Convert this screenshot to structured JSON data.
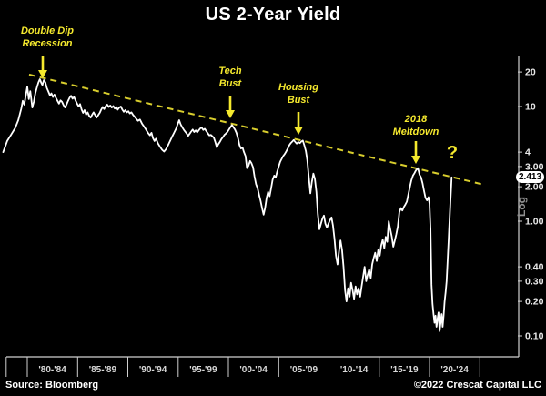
{
  "title": "US 2-Year Yield",
  "footer": {
    "source": "Source: Bloomberg",
    "copyright": "©2022 Crescat Capital LLC"
  },
  "axis": {
    "scale_label": "Log",
    "current_value_label": "2.413"
  },
  "annotations": {
    "double_dip": {
      "line1": "Double Dip",
      "line2": "Recession"
    },
    "tech_bust": {
      "line1": "Tech",
      "line2": "Bust"
    },
    "housing_bust": {
      "line1": "Housing",
      "line2": "Bust"
    },
    "meltdown_2018": {
      "line1": "2018",
      "line2": "Meltdown"
    },
    "question_mark": "?"
  },
  "colors": {
    "background": "#000000",
    "series_line": "#ffffff",
    "trendline": "#d8cd2d",
    "annotation": "#f5e92e",
    "axis": "#d0d0d0",
    "x_label": "#d8d8d8",
    "y_label": "#e8e8e8"
  },
  "chart_data": {
    "type": "line",
    "title": "US 2-Year Yield",
    "xlabel": "",
    "ylabel": "",
    "y_scale": "log",
    "ylim": [
      0.065,
      25
    ],
    "grid": false,
    "legend": "none",
    "current_value": 2.413,
    "x_tick_years": [
      1977.9,
      1980,
      1985,
      1990,
      1995,
      2000,
      2005,
      2010,
      2015,
      2020,
      2025
    ],
    "x_tick_labels": [
      "'80-'84",
      "'85-'89",
      "'90-'94",
      "'95-'99",
      "'00-'04",
      "'05-'09",
      "'10-'14",
      "'15-'19",
      "'20-'24"
    ],
    "y_ticks": [
      {
        "value": 20,
        "label": "20"
      },
      {
        "value": 10,
        "label": "10"
      },
      {
        "value": 4,
        "label": "4"
      },
      {
        "value": 3,
        "label": "3.00"
      },
      {
        "value": 2,
        "label": "2.00"
      },
      {
        "value": 1,
        "label": "1.00"
      },
      {
        "value": 0.4,
        "label": "0.40"
      },
      {
        "value": 0.3,
        "label": "0.30"
      },
      {
        "value": 0.2,
        "label": "0.20"
      },
      {
        "value": 0.1,
        "label": "0.10"
      }
    ],
    "trendline": {
      "style": "dashed",
      "points": [
        [
          1980.18,
          19.0
        ],
        [
          2025.4,
          2.08
        ]
      ]
    },
    "series": {
      "name": "US 2-Year Yield",
      "points": [
        [
          1977.6,
          4.0
        ],
        [
          1978.0,
          5.0
        ],
        [
          1978.4,
          5.7
        ],
        [
          1978.8,
          6.5
        ],
        [
          1979.1,
          7.6
        ],
        [
          1979.4,
          9.6
        ],
        [
          1979.55,
          11.2
        ],
        [
          1979.7,
          10.4
        ],
        [
          1979.85,
          12.4
        ],
        [
          1980.0,
          14.9
        ],
        [
          1980.15,
          11.6
        ],
        [
          1980.3,
          13.6
        ],
        [
          1980.5,
          9.8
        ],
        [
          1980.65,
          11.0
        ],
        [
          1980.8,
          13.0
        ],
        [
          1980.95,
          14.6
        ],
        [
          1981.1,
          16.2
        ],
        [
          1981.25,
          17.3
        ],
        [
          1981.4,
          16.0
        ],
        [
          1981.5,
          15.4
        ],
        [
          1981.65,
          17.0
        ],
        [
          1981.8,
          16.2
        ],
        [
          1981.95,
          14.5
        ],
        [
          1982.1,
          13.5
        ],
        [
          1982.25,
          12.5
        ],
        [
          1982.4,
          13.0
        ],
        [
          1982.55,
          12.1
        ],
        [
          1982.7,
          12.7
        ],
        [
          1982.85,
          11.9
        ],
        [
          1983.0,
          11.2
        ],
        [
          1983.15,
          10.6
        ],
        [
          1983.3,
          11.3
        ],
        [
          1983.45,
          11.0
        ],
        [
          1983.6,
          10.3
        ],
        [
          1983.75,
          9.8
        ],
        [
          1983.9,
          10.4
        ],
        [
          1984.05,
          11.2
        ],
        [
          1984.2,
          11.9
        ],
        [
          1984.35,
          12.4
        ],
        [
          1984.5,
          11.7
        ],
        [
          1984.65,
          12.1
        ],
        [
          1984.8,
          11.3
        ],
        [
          1984.95,
          10.6
        ],
        [
          1985.1,
          10.0
        ],
        [
          1985.25,
          10.5
        ],
        [
          1985.4,
          9.4
        ],
        [
          1985.55,
          8.8
        ],
        [
          1985.7,
          9.3
        ],
        [
          1985.85,
          8.5
        ],
        [
          1986.0,
          8.9
        ],
        [
          1986.15,
          8.3
        ],
        [
          1986.3,
          8.0
        ],
        [
          1986.45,
          8.5
        ],
        [
          1986.6,
          8.9
        ],
        [
          1986.75,
          8.4
        ],
        [
          1986.9,
          8.0
        ],
        [
          1987.05,
          8.4
        ],
        [
          1987.2,
          8.8
        ],
        [
          1987.35,
          9.4
        ],
        [
          1987.5,
          9.9
        ],
        [
          1987.65,
          9.5
        ],
        [
          1987.8,
          10.1
        ],
        [
          1987.95,
          10.4
        ],
        [
          1988.1,
          9.9
        ],
        [
          1988.25,
          10.2
        ],
        [
          1988.4,
          9.8
        ],
        [
          1988.55,
          10.1
        ],
        [
          1988.7,
          9.6
        ],
        [
          1988.85,
          9.9
        ],
        [
          1989.0,
          9.4
        ],
        [
          1989.15,
          9.8
        ],
        [
          1989.3,
          10.0
        ],
        [
          1989.45,
          9.4
        ],
        [
          1989.6,
          9.0
        ],
        [
          1989.75,
          9.3
        ],
        [
          1989.9,
          8.9
        ],
        [
          1990.05,
          9.1
        ],
        [
          1990.2,
          8.7
        ],
        [
          1990.35,
          8.9
        ],
        [
          1990.5,
          8.5
        ],
        [
          1990.65,
          8.2
        ],
        [
          1990.8,
          7.9
        ],
        [
          1991.0,
          7.5
        ],
        [
          1991.2,
          7.7
        ],
        [
          1991.4,
          7.1
        ],
        [
          1991.6,
          6.7
        ],
        [
          1991.8,
          6.3
        ],
        [
          1992.0,
          5.9
        ],
        [
          1992.2,
          5.6
        ],
        [
          1992.35,
          5.9
        ],
        [
          1992.5,
          5.3
        ],
        [
          1992.65,
          5.0
        ],
        [
          1992.8,
          5.25
        ],
        [
          1993.0,
          4.75
        ],
        [
          1993.2,
          4.45
        ],
        [
          1993.4,
          4.2
        ],
        [
          1993.6,
          4.05
        ],
        [
          1993.8,
          4.25
        ],
        [
          1994.0,
          4.6
        ],
        [
          1994.2,
          5.0
        ],
        [
          1994.4,
          5.45
        ],
        [
          1994.6,
          5.9
        ],
        [
          1994.8,
          6.4
        ],
        [
          1994.95,
          7.0
        ],
        [
          1995.1,
          7.6
        ],
        [
          1995.25,
          7.0
        ],
        [
          1995.4,
          6.6
        ],
        [
          1995.6,
          6.2
        ],
        [
          1995.8,
          5.9
        ],
        [
          1996.0,
          5.55
        ],
        [
          1996.15,
          5.8
        ],
        [
          1996.3,
          6.05
        ],
        [
          1996.45,
          6.3
        ],
        [
          1996.6,
          6.0
        ],
        [
          1996.75,
          6.2
        ],
        [
          1996.9,
          5.95
        ],
        [
          1997.05,
          6.2
        ],
        [
          1997.2,
          6.45
        ],
        [
          1997.35,
          6.55
        ],
        [
          1997.5,
          6.25
        ],
        [
          1997.65,
          6.4
        ],
        [
          1997.8,
          6.1
        ],
        [
          1997.95,
          5.85
        ],
        [
          1998.1,
          5.6
        ],
        [
          1998.25,
          5.65
        ],
        [
          1998.4,
          5.5
        ],
        [
          1998.55,
          5.35
        ],
        [
          1998.7,
          4.9
        ],
        [
          1998.85,
          4.4
        ],
        [
          1999.0,
          4.7
        ],
        [
          1999.15,
          4.9
        ],
        [
          1999.3,
          5.2
        ],
        [
          1999.45,
          5.4
        ],
        [
          1999.6,
          5.65
        ],
        [
          1999.75,
          5.8
        ],
        [
          1999.9,
          6.0
        ],
        [
          2000.05,
          6.3
        ],
        [
          2000.2,
          6.6
        ],
        [
          2000.35,
          6.9
        ],
        [
          2000.5,
          6.6
        ],
        [
          2000.65,
          6.3
        ],
        [
          2000.8,
          5.9
        ],
        [
          2000.95,
          5.3
        ],
        [
          2001.1,
          4.6
        ],
        [
          2001.25,
          4.3
        ],
        [
          2001.4,
          4.4
        ],
        [
          2001.55,
          4.0
        ],
        [
          2001.7,
          3.7
        ],
        [
          2001.85,
          2.9
        ],
        [
          2002.0,
          3.05
        ],
        [
          2002.15,
          3.35
        ],
        [
          2002.3,
          3.2
        ],
        [
          2002.45,
          2.95
        ],
        [
          2002.6,
          2.45
        ],
        [
          2002.75,
          2.1
        ],
        [
          2002.9,
          1.95
        ],
        [
          2003.05,
          1.7
        ],
        [
          2003.2,
          1.5
        ],
        [
          2003.35,
          1.3
        ],
        [
          2003.5,
          1.14
        ],
        [
          2003.65,
          1.3
        ],
        [
          2003.8,
          1.6
        ],
        [
          2003.95,
          1.8
        ],
        [
          2004.1,
          1.65
        ],
        [
          2004.25,
          1.95
        ],
        [
          2004.4,
          2.3
        ],
        [
          2004.55,
          2.5
        ],
        [
          2004.7,
          2.4
        ],
        [
          2004.85,
          2.7
        ],
        [
          2005.0,
          3.0
        ],
        [
          2005.15,
          3.3
        ],
        [
          2005.3,
          3.5
        ],
        [
          2005.45,
          3.7
        ],
        [
          2005.6,
          3.85
        ],
        [
          2005.75,
          4.05
        ],
        [
          2005.9,
          4.3
        ],
        [
          2006.05,
          4.6
        ],
        [
          2006.2,
          4.8
        ],
        [
          2006.35,
          4.95
        ],
        [
          2006.5,
          5.1
        ],
        [
          2006.65,
          4.9
        ],
        [
          2006.8,
          4.75
        ],
        [
          2006.95,
          4.9
        ],
        [
          2007.1,
          4.8
        ],
        [
          2007.25,
          4.95
        ],
        [
          2007.4,
          5.05
        ],
        [
          2007.55,
          4.6
        ],
        [
          2007.7,
          4.1
        ],
        [
          2007.85,
          3.4
        ],
        [
          2008.0,
          2.4
        ],
        [
          2008.15,
          1.75
        ],
        [
          2008.3,
          2.2
        ],
        [
          2008.45,
          2.6
        ],
        [
          2008.6,
          2.35
        ],
        [
          2008.75,
          1.8
        ],
        [
          2008.9,
          1.15
        ],
        [
          2009.05,
          0.85
        ],
        [
          2009.2,
          0.95
        ],
        [
          2009.35,
          1.05
        ],
        [
          2009.5,
          1.12
        ],
        [
          2009.65,
          0.95
        ],
        [
          2009.8,
          0.88
        ],
        [
          2009.95,
          0.95
        ],
        [
          2010.1,
          1.02
        ],
        [
          2010.25,
          1.08
        ],
        [
          2010.4,
          0.92
        ],
        [
          2010.55,
          0.7
        ],
        [
          2010.7,
          0.5
        ],
        [
          2010.85,
          0.42
        ],
        [
          2011.0,
          0.55
        ],
        [
          2011.15,
          0.68
        ],
        [
          2011.3,
          0.56
        ],
        [
          2011.45,
          0.4
        ],
        [
          2011.6,
          0.25
        ],
        [
          2011.75,
          0.2
        ],
        [
          2011.9,
          0.26
        ],
        [
          2012.05,
          0.22
        ],
        [
          2012.2,
          0.29
        ],
        [
          2012.35,
          0.25
        ],
        [
          2012.5,
          0.21
        ],
        [
          2012.65,
          0.27
        ],
        [
          2012.8,
          0.23
        ],
        [
          2012.95,
          0.26
        ],
        [
          2013.1,
          0.22
        ],
        [
          2013.25,
          0.27
        ],
        [
          2013.4,
          0.33
        ],
        [
          2013.55,
          0.4
        ],
        [
          2013.7,
          0.3
        ],
        [
          2013.85,
          0.34
        ],
        [
          2014.0,
          0.38
        ],
        [
          2014.15,
          0.32
        ],
        [
          2014.3,
          0.42
        ],
        [
          2014.45,
          0.48
        ],
        [
          2014.6,
          0.53
        ],
        [
          2014.75,
          0.45
        ],
        [
          2014.9,
          0.56
        ],
        [
          2015.05,
          0.5
        ],
        [
          2015.2,
          0.62
        ],
        [
          2015.35,
          0.69
        ],
        [
          2015.5,
          0.58
        ],
        [
          2015.65,
          0.73
        ],
        [
          2015.8,
          0.66
        ],
        [
          2015.95,
          1.0
        ],
        [
          2016.1,
          0.85
        ],
        [
          2016.25,
          0.73
        ],
        [
          2016.4,
          0.6
        ],
        [
          2016.55,
          0.68
        ],
        [
          2016.7,
          0.77
        ],
        [
          2016.85,
          0.9
        ],
        [
          2017.0,
          1.2
        ],
        [
          2017.15,
          1.3
        ],
        [
          2017.3,
          1.24
        ],
        [
          2017.45,
          1.33
        ],
        [
          2017.6,
          1.4
        ],
        [
          2017.75,
          1.48
        ],
        [
          2017.9,
          1.72
        ],
        [
          2018.05,
          2.0
        ],
        [
          2018.2,
          2.28
        ],
        [
          2018.35,
          2.5
        ],
        [
          2018.5,
          2.62
        ],
        [
          2018.65,
          2.78
        ],
        [
          2018.85,
          2.9
        ],
        [
          2019.0,
          2.55
        ],
        [
          2019.15,
          2.42
        ],
        [
          2019.3,
          2.15
        ],
        [
          2019.45,
          1.85
        ],
        [
          2019.6,
          1.6
        ],
        [
          2019.75,
          1.52
        ],
        [
          2019.9,
          1.62
        ],
        [
          2020.0,
          1.42
        ],
        [
          2020.1,
          0.85
        ],
        [
          2020.2,
          0.28
        ],
        [
          2020.3,
          0.19
        ],
        [
          2020.4,
          0.155
        ],
        [
          2020.5,
          0.13
        ],
        [
          2020.6,
          0.15
        ],
        [
          2020.7,
          0.12
        ],
        [
          2020.8,
          0.14
        ],
        [
          2020.9,
          0.16
        ],
        [
          2021.0,
          0.11
        ],
        [
          2021.1,
          0.13
        ],
        [
          2021.2,
          0.155
        ],
        [
          2021.3,
          0.12
        ],
        [
          2021.4,
          0.15
        ],
        [
          2021.5,
          0.2
        ],
        [
          2021.6,
          0.24
        ],
        [
          2021.7,
          0.3
        ],
        [
          2021.8,
          0.45
        ],
        [
          2021.9,
          0.68
        ],
        [
          2022.0,
          1.05
        ],
        [
          2022.08,
          1.5
        ],
        [
          2022.15,
          2.0
        ],
        [
          2022.2,
          2.413
        ]
      ]
    }
  }
}
